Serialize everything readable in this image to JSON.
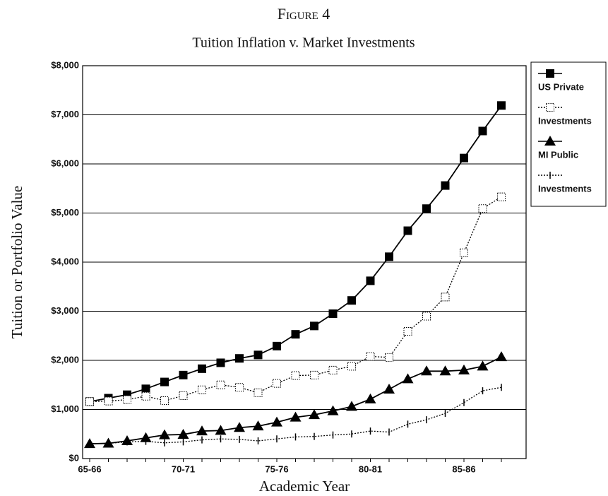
{
  "chart_data": {
    "type": "line",
    "title": "Figure 4",
    "subtitle": "Tuition Inflation v. Market Investments",
    "xlabel": "Academic Year",
    "ylabel": "Tuition or Portfolio Value",
    "categories": [
      "65-66",
      null,
      null,
      null,
      null,
      "70-71",
      null,
      null,
      null,
      null,
      "75-76",
      null,
      null,
      null,
      null,
      "80-81",
      null,
      null,
      null,
      null,
      "85-86",
      null,
      null
    ],
    "series": [
      {
        "name": "US Private",
        "color": "#000000",
        "marker": "square-filled",
        "dash": "solid",
        "values": [
          1160,
          1230,
          1300,
          1420,
          1560,
          1700,
          1830,
          1950,
          2040,
          2110,
          2290,
          2530,
          2700,
          2950,
          3220,
          3620,
          4110,
          4640,
          5090,
          5560,
          6120,
          6670,
          7190
        ]
      },
      {
        "name": "Investments",
        "color": "#000000",
        "marker": "square-open",
        "dash": "dotted",
        "values": [
          1160,
          1170,
          1200,
          1270,
          1180,
          1280,
          1400,
          1500,
          1450,
          1340,
          1530,
          1690,
          1700,
          1800,
          1880,
          2080,
          2060,
          2590,
          2900,
          3290,
          4190,
          5090,
          5330
        ]
      },
      {
        "name": "MI Public",
        "color": "#000000",
        "marker": "triangle",
        "dash": "solid",
        "values": [
          300,
          310,
          360,
          420,
          480,
          490,
          560,
          570,
          630,
          660,
          740,
          840,
          890,
          970,
          1060,
          1210,
          1410,
          1620,
          1780,
          1780,
          1800,
          1880,
          2070
        ]
      },
      {
        "name": "Investments",
        "color": "#000000",
        "marker": "tick",
        "dash": "dotted",
        "values": [
          300,
          310,
          340,
          350,
          320,
          340,
          380,
          400,
          390,
          360,
          400,
          440,
          450,
          480,
          500,
          560,
          540,
          700,
          790,
          920,
          1140,
          1380,
          1450
        ]
      }
    ],
    "ylim": [
      0,
      8000
    ],
    "yticks": [
      {
        "value": 0,
        "label": "$0"
      },
      {
        "value": 1000,
        "label": "$1,000"
      },
      {
        "value": 2000,
        "label": "$2,000"
      },
      {
        "value": 3000,
        "label": "$3,000"
      },
      {
        "value": 4000,
        "label": "$4,000"
      },
      {
        "value": 5000,
        "label": "$5,000"
      },
      {
        "value": 6000,
        "label": "$6,000"
      },
      {
        "value": 7000,
        "label": "$7,000"
      },
      {
        "value": 8000,
        "label": "$8,000"
      }
    ],
    "grid": true,
    "legend": "right"
  }
}
